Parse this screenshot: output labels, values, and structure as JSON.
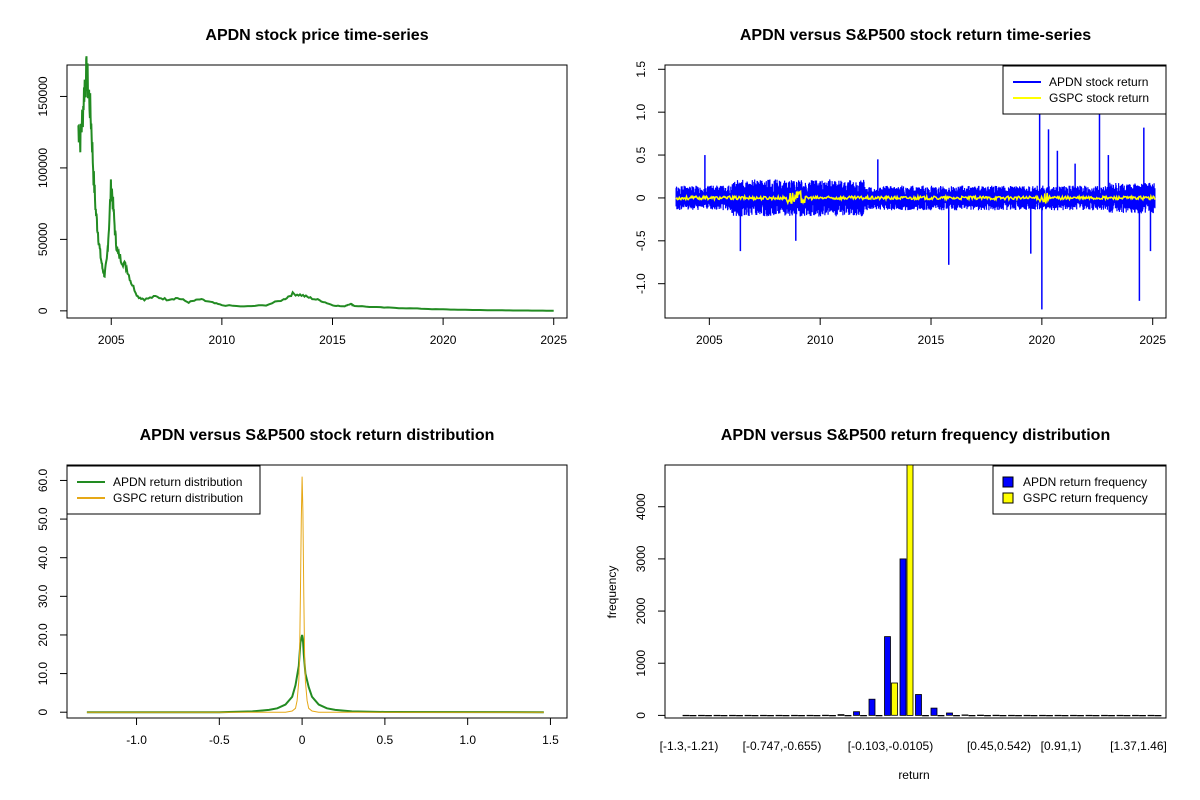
{
  "chart_data": [
    {
      "type": "line",
      "title": "APDN stock price time-series",
      "xlim": [
        2003.0,
        2025.6
      ],
      "ylim": [
        -5000,
        172000
      ],
      "xticks": [
        2005,
        2010,
        2015,
        2020,
        2025
      ],
      "yticks": [
        0,
        50000,
        100000,
        150000
      ],
      "series": [
        {
          "color": "#228B22",
          "x": [
            2003.5,
            2003.6,
            2003.7,
            2003.8,
            2003.9,
            2004.0,
            2004.1,
            2004.2,
            2004.3,
            2004.4,
            2004.5,
            2004.6,
            2004.7,
            2004.8,
            2004.9,
            2005.0,
            2005.1,
            2005.2,
            2005.3,
            2005.5,
            2005.7,
            2005.9,
            2006.2,
            2006.5,
            2007.0,
            2007.5,
            2008.0,
            2008.5,
            2009.0,
            2009.5,
            2010.0,
            2011.0,
            2012.0,
            2012.8,
            2013.2,
            2013.6,
            2014.0,
            2014.5,
            2015.0,
            2015.5,
            2015.8,
            2016.0,
            2017.0,
            2018.0,
            2019.0,
            2020.0,
            2021.0,
            2022.0,
            2023.0,
            2024.0,
            2025.0
          ],
          "y": [
            130000,
            120000,
            135000,
            160000,
            165000,
            150000,
            130000,
            95000,
            70000,
            55000,
            40000,
            30000,
            25000,
            35000,
            60000,
            90000,
            70000,
            50000,
            40000,
            35000,
            30000,
            20000,
            10000,
            8000,
            10000,
            8000,
            9000,
            6000,
            8000,
            6000,
            4000,
            3000,
            4000,
            8000,
            12000,
            11000,
            9000,
            7000,
            4000,
            3000,
            5000,
            3500,
            2500,
            2000,
            1500,
            1000,
            700,
            500,
            300,
            200,
            100
          ]
        }
      ]
    },
    {
      "type": "line",
      "title": "APDN versus S&P500 stock return time-series",
      "xlim": [
        2003.0,
        2025.6
      ],
      "ylim": [
        -1.4,
        1.55
      ],
      "xticks": [
        2005,
        2010,
        2015,
        2020,
        2025
      ],
      "yticks": [
        -1.0,
        -0.5,
        0.0,
        0.5,
        1.0,
        1.5
      ],
      "legend": {
        "position": "top-right"
      },
      "series": [
        {
          "name": "APDN stock return",
          "color": "#0000FF"
        },
        {
          "name": "GSPC stock return",
          "color": "#FFFF00"
        }
      ],
      "spikes": [
        {
          "x": 2004.8,
          "y": 0.5
        },
        {
          "x": 2006.4,
          "y": -0.62
        },
        {
          "x": 2008.9,
          "y": -0.5
        },
        {
          "x": 2012.6,
          "y": 0.45
        },
        {
          "x": 2015.8,
          "y": -0.78
        },
        {
          "x": 2019.5,
          "y": -0.65
        },
        {
          "x": 2019.9,
          "y": 1.0
        },
        {
          "x": 2020.0,
          "y": -1.3
        },
        {
          "x": 2020.3,
          "y": 0.8
        },
        {
          "x": 2020.7,
          "y": 0.55
        },
        {
          "x": 2021.5,
          "y": 0.4
        },
        {
          "x": 2022.6,
          "y": 1.0
        },
        {
          "x": 2023.0,
          "y": 0.5
        },
        {
          "x": 2024.4,
          "y": -1.2
        },
        {
          "x": 2024.6,
          "y": 0.82
        },
        {
          "x": 2024.9,
          "y": -0.62
        }
      ]
    },
    {
      "type": "line",
      "title": "APDN versus S&P500 stock return distribution",
      "xlim": [
        -1.42,
        1.6
      ],
      "ylim": [
        -1.5,
        64
      ],
      "xticks": [
        -1.0,
        -0.5,
        0.0,
        0.5,
        1.0,
        1.5
      ],
      "yticks": [
        0,
        10,
        20,
        30,
        40,
        50,
        60
      ],
      "legend": {
        "position": "top-left"
      },
      "series": [
        {
          "name": "APDN return distribution",
          "color": "#228B22",
          "x": [
            -1.3,
            -0.5,
            -0.3,
            -0.2,
            -0.15,
            -0.1,
            -0.06,
            -0.04,
            -0.02,
            -0.01,
            0.0,
            0.005,
            0.01,
            0.02,
            0.04,
            0.06,
            0.1,
            0.15,
            0.2,
            0.3,
            0.5,
            1.46
          ],
          "y": [
            0,
            0,
            0.2,
            0.6,
            1.0,
            2.0,
            4.0,
            7.0,
            12.0,
            18.0,
            20.0,
            19.0,
            15.0,
            10.0,
            6.5,
            4.0,
            2.0,
            1.0,
            0.6,
            0.2,
            0.05,
            0
          ]
        },
        {
          "name": "GSPC return distribution",
          "color": "#E6A817",
          "x": [
            -1.3,
            -0.1,
            -0.06,
            -0.04,
            -0.03,
            -0.02,
            -0.015,
            -0.01,
            -0.005,
            0.0,
            0.005,
            0.01,
            0.015,
            0.02,
            0.03,
            0.04,
            0.06,
            0.1,
            1.46
          ],
          "y": [
            0,
            0,
            0.3,
            1.0,
            3.0,
            8.0,
            15.0,
            30.0,
            50.0,
            61.0,
            52.0,
            30.0,
            15.0,
            8.0,
            3.0,
            1.0,
            0.3,
            0,
            0
          ]
        }
      ]
    },
    {
      "type": "bar",
      "title": "APDN versus S&P500 return frequency distribution",
      "xlabel": "return",
      "ylabel": "frequency",
      "ylim": [
        -50,
        4800
      ],
      "yticks": [
        0,
        1000,
        2000,
        3000,
        4000
      ],
      "legend": {
        "position": "top-right"
      },
      "bin_count": 31,
      "center_bin": 14,
      "tick_labels": [
        {
          "bin": 0,
          "label": "[-1.3,-1.21)"
        },
        {
          "bin": 6,
          "label": "[-0.747,-0.655)"
        },
        {
          "bin": 13,
          "label": "[-0.103,-0.0105)"
        },
        {
          "bin": 20,
          "label": "[0.45,0.542)"
        },
        {
          "bin": 24,
          "label": "[0.91,1)"
        },
        {
          "bin": 29,
          "label": "[1.37,1.46]"
        }
      ],
      "series": [
        {
          "name": "APDN return frequency",
          "color": "#0000FF",
          "values": [
            2,
            1,
            1,
            1,
            1,
            1,
            2,
            2,
            2,
            3,
            15,
            70,
            310,
            1510,
            3000,
            400,
            140,
            45,
            10,
            5,
            3,
            2,
            2,
            2,
            2,
            1,
            1,
            1,
            1,
            1,
            2
          ]
        },
        {
          "name": "GSPC return frequency",
          "color": "#FFFF00",
          "values": [
            0,
            0,
            0,
            0,
            0,
            0,
            0,
            0,
            0,
            0,
            0,
            0,
            0,
            620,
            4800,
            0,
            0,
            0,
            0,
            0,
            0,
            0,
            0,
            0,
            0,
            0,
            0,
            0,
            0,
            0,
            0
          ]
        }
      ]
    }
  ]
}
